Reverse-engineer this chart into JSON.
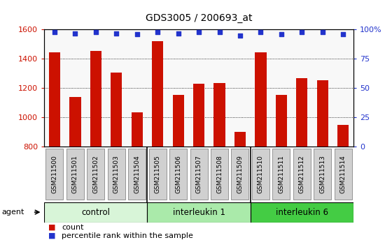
{
  "title": "GDS3005 / 200693_at",
  "samples": [
    "GSM211500",
    "GSM211501",
    "GSM211502",
    "GSM211503",
    "GSM211504",
    "GSM211505",
    "GSM211506",
    "GSM211507",
    "GSM211508",
    "GSM211509",
    "GSM211510",
    "GSM211511",
    "GSM211512",
    "GSM211513",
    "GSM211514"
  ],
  "counts": [
    1445,
    1140,
    1455,
    1305,
    1035,
    1520,
    1155,
    1230,
    1235,
    898,
    1445,
    1155,
    1270,
    1255,
    950
  ],
  "percentiles": [
    98,
    97,
    98,
    97,
    96,
    98,
    97,
    98,
    98,
    95,
    98,
    96,
    98,
    98,
    96
  ],
  "groups": [
    {
      "label": "control",
      "start": 0,
      "end": 5,
      "color": "#d8f5d8"
    },
    {
      "label": "interleukin 1",
      "start": 5,
      "end": 10,
      "color": "#aaeaaa"
    },
    {
      "label": "interleukin 6",
      "start": 10,
      "end": 15,
      "color": "#44cc44"
    }
  ],
  "ylim_left": [
    800,
    1600
  ],
  "ylim_right": [
    0,
    100
  ],
  "yticks_left": [
    800,
    1000,
    1200,
    1400,
    1600
  ],
  "yticks_right": [
    0,
    25,
    50,
    75,
    100
  ],
  "bar_color": "#cc1100",
  "dot_color": "#2233cc",
  "bg_color": "#f8f8f8",
  "grid_color": "#000000",
  "box_color": "#cccccc",
  "legend_count": "count",
  "legend_pct": "percentile rank within the sample"
}
